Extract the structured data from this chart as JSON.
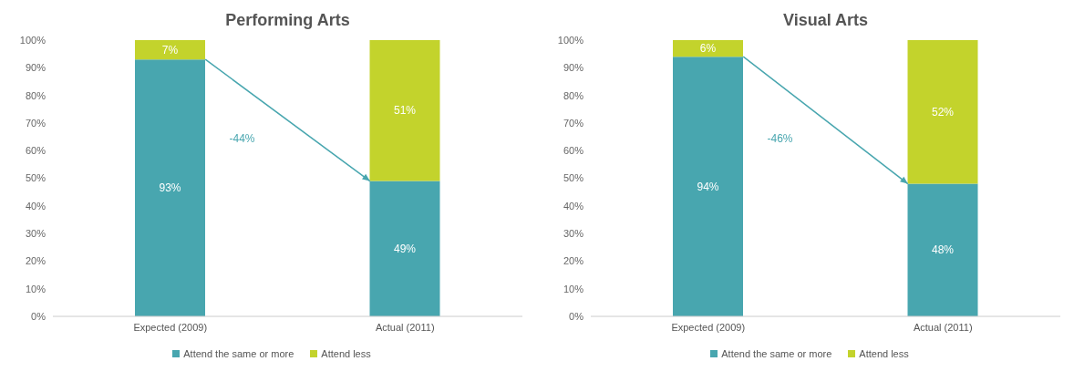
{
  "chart_data": [
    {
      "type": "bar",
      "title": "Performing Arts",
      "categories": [
        "Expected (2009)",
        "Actual (2011)"
      ],
      "stacked": true,
      "legend": "bottom",
      "ylim": [
        0,
        100
      ],
      "yticks": [
        {
          "value": 0,
          "label": "0%"
        },
        {
          "value": 10,
          "label": "10%"
        },
        {
          "value": 20,
          "label": "20%"
        },
        {
          "value": 30,
          "label": "30%"
        },
        {
          "value": 40,
          "label": "40%"
        },
        {
          "value": 50,
          "label": "50%"
        },
        {
          "value": 60,
          "label": "60%"
        },
        {
          "value": 70,
          "label": "70%"
        },
        {
          "value": 80,
          "label": "80%"
        },
        {
          "value": 90,
          "label": "90%"
        },
        {
          "value": 100,
          "label": "100%"
        }
      ],
      "series": [
        {
          "name": "Attend the same or more",
          "color": "#48a6af",
          "values": [
            93,
            49
          ],
          "value_labels": [
            "93%",
            "49%"
          ]
        },
        {
          "name": "Attend less",
          "color": "#c3d32c",
          "values": [
            7,
            51
          ],
          "value_labels": [
            "7%",
            "51%"
          ]
        }
      ],
      "annotations": [
        "-44%"
      ]
    },
    {
      "type": "bar",
      "title": "Visual Arts",
      "categories": [
        "Expected (2009)",
        "Actual (2011)"
      ],
      "stacked": true,
      "legend": "bottom",
      "ylim": [
        0,
        100
      ],
      "yticks": [
        {
          "value": 0,
          "label": "0%"
        },
        {
          "value": 10,
          "label": "10%"
        },
        {
          "value": 20,
          "label": "20%"
        },
        {
          "value": 30,
          "label": "30%"
        },
        {
          "value": 40,
          "label": "40%"
        },
        {
          "value": 50,
          "label": "50%"
        },
        {
          "value": 60,
          "label": "60%"
        },
        {
          "value": 70,
          "label": "70%"
        },
        {
          "value": 80,
          "label": "80%"
        },
        {
          "value": 90,
          "label": "90%"
        },
        {
          "value": 100,
          "label": "100%"
        }
      ],
      "series": [
        {
          "name": "Attend the same or more",
          "color": "#48a6af",
          "values": [
            94,
            48
          ],
          "value_labels": [
            "94%",
            "48%"
          ]
        },
        {
          "name": "Attend less",
          "color": "#c3d32c",
          "values": [
            6,
            52
          ],
          "value_labels": [
            "6%",
            "52%"
          ]
        }
      ],
      "annotations": [
        "-46%"
      ]
    }
  ]
}
